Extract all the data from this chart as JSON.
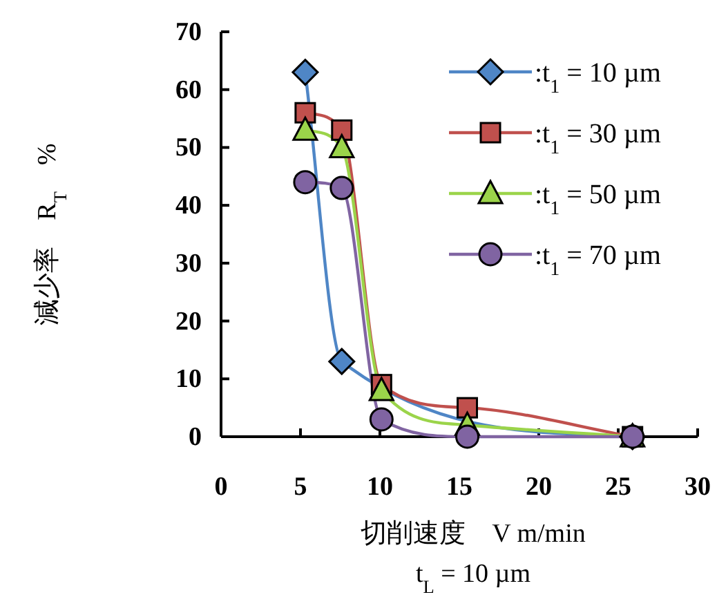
{
  "chart_data": {
    "type": "line",
    "xlabel": "切削速度　V m/min",
    "ylabel": "減少率　R$_{T}$　%",
    "annotations": [
      "t$_{L}$ = 10 µm"
    ],
    "x": [
      5.3,
      7.6,
      10.1,
      15.5,
      25.9
    ],
    "series": [
      {
        "name": ":t$_{1}$ = 10 µm",
        "color": "#4f86c6",
        "marker": "diamond",
        "values": [
          63,
          13,
          null,
          null,
          0
        ]
      },
      {
        "name": ":t$_{1}$ = 30 µm",
        "color": "#c0504d",
        "marker": "square",
        "values": [
          56,
          53,
          9,
          5,
          0
        ]
      },
      {
        "name": ":t$_{1}$ = 50 µm",
        "color": "#9bd44a",
        "marker": "triangle",
        "values": [
          53,
          50,
          8,
          2,
          0
        ]
      },
      {
        "name": ":t$_{1}$ = 70 µm",
        "color": "#8064a2",
        "marker": "circle",
        "values": [
          44,
          43,
          3,
          0,
          0
        ]
      }
    ],
    "xlim": [
      0,
      30
    ],
    "ylim": [
      0,
      70
    ],
    "xticks": [
      0,
      5,
      10,
      15,
      20,
      25,
      30
    ],
    "yticks": [
      0,
      10,
      20,
      30,
      40,
      50,
      60,
      70
    ],
    "grid": false,
    "legend": "top right"
  }
}
